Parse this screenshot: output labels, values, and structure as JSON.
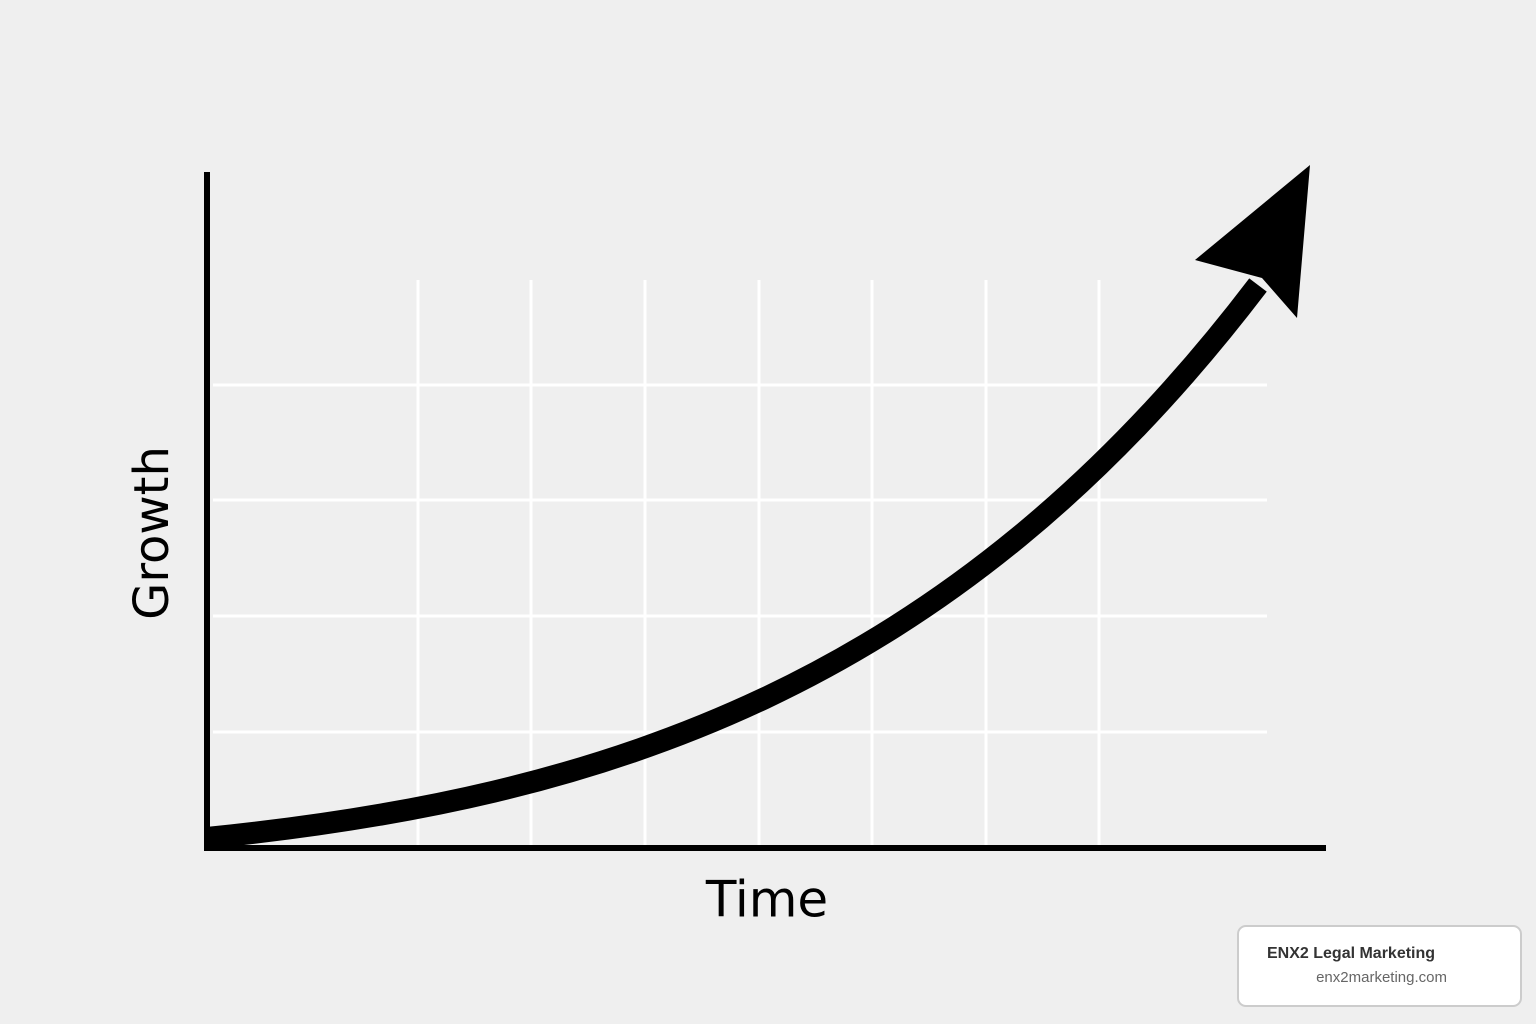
{
  "axis_labels": {
    "y": "Growth",
    "x": "Time"
  },
  "watermark": {
    "title": "ENX2 Legal Marketing",
    "url": "enx2marketing.com"
  }
}
